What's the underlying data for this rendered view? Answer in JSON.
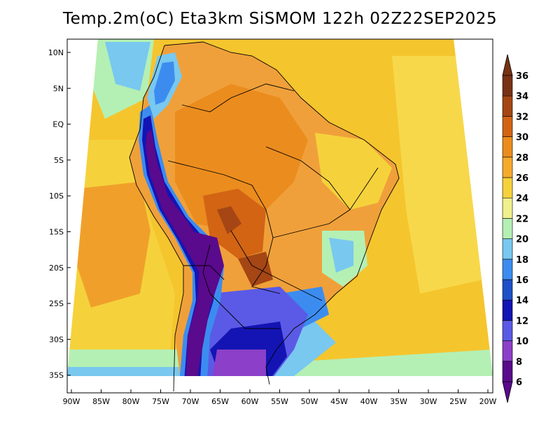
{
  "title": "Temp.2m(oC) Eta3km SiSMOM 122h 02Z22SEP2025",
  "lat_ticks": [
    "10N",
    "5N",
    "EQ",
    "5S",
    "10S",
    "15S",
    "20S",
    "25S",
    "30S",
    "35S"
  ],
  "lon_ticks": [
    "90W",
    "85W",
    "80W",
    "75W",
    "70W",
    "65W",
    "60W",
    "55W",
    "50W",
    "45W",
    "40W",
    "35W",
    "30W",
    "25W",
    "20W"
  ],
  "colorbar": {
    "labels": [
      "6",
      "8",
      "10",
      "12",
      "14",
      "16",
      "18",
      "20",
      "22",
      "24",
      "26",
      "28",
      "30",
      "32",
      "34",
      "36"
    ],
    "colors": [
      "#5a0a8c",
      "#8c3fc8",
      "#5a5ae6",
      "#1414b4",
      "#1e50c8",
      "#3c8cf0",
      "#78c8f0",
      "#b4f0b4",
      "#f0f08c",
      "#f5d23c",
      "#f5aa2d",
      "#eb8c1e",
      "#d26414",
      "#a54614",
      "#783214"
    ]
  },
  "colors": {
    "ocean": "#f5c02e",
    "ocean_north": "#f7d84a",
    "pacific_warm": "#f0a02a",
    "land_warm": "#f0a03a",
    "land_hot": "#e07a1e",
    "andes_cold": "#3a1a8a",
    "south_cold": "#5a5ae6",
    "cool": "#78c8f0"
  }
}
